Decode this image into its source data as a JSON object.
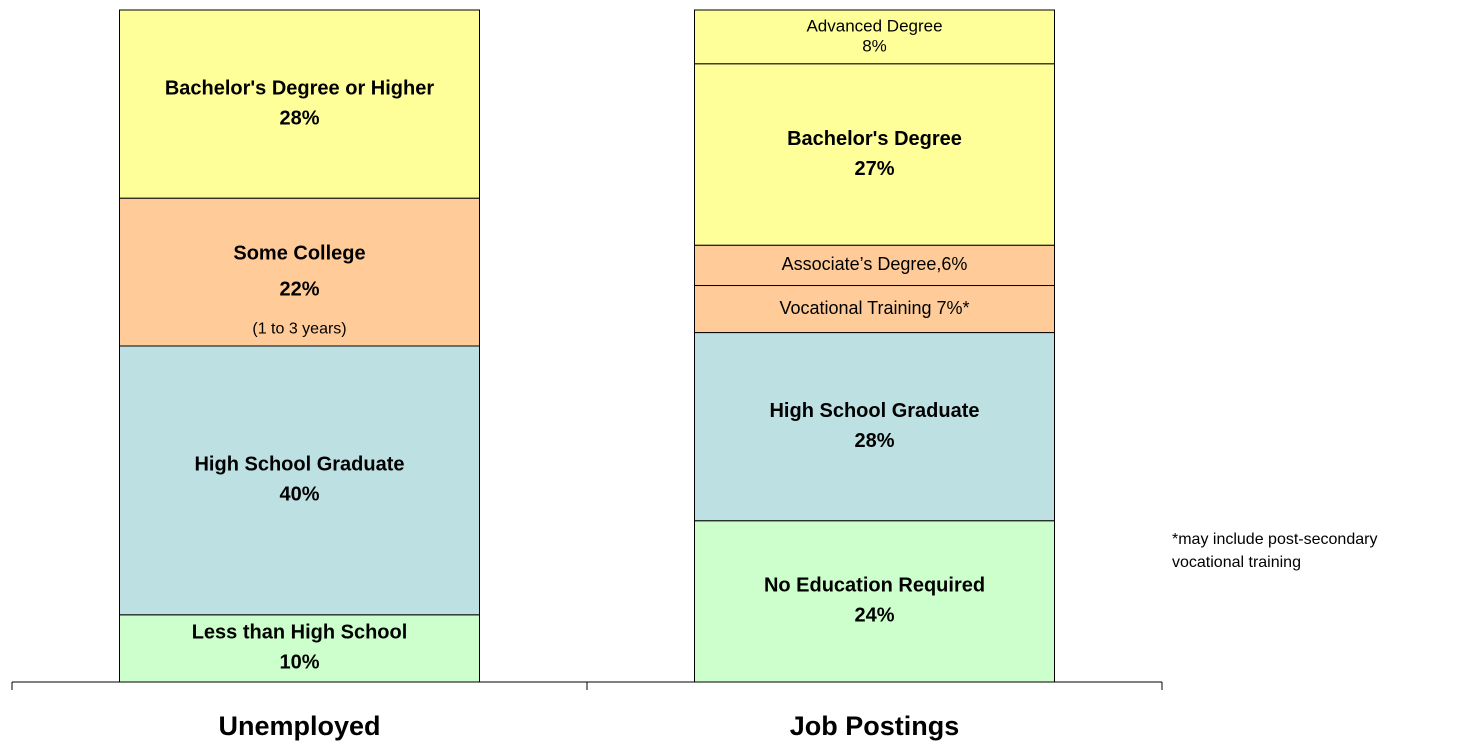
{
  "chart_data": {
    "type": "stacked-bar",
    "ylim": [
      0,
      100
    ],
    "stacks": [
      {
        "category": "Unemployed",
        "segments": [
          {
            "name": "Less than High School",
            "value": 10,
            "value_label": "10%",
            "color": "#ccffcc",
            "bold": true
          },
          {
            "name": "High School Graduate",
            "value": 40,
            "value_label": "40%",
            "color": "#bde0e3",
            "bold": true
          },
          {
            "name": "Some College",
            "value": 22,
            "value_label": "22%",
            "note": "(1 to 3 years)",
            "color": "#ffcc99",
            "bold": true
          },
          {
            "name": "Bachelor's Degree or Higher",
            "value": 28,
            "value_label": "28%",
            "color": "#ffff99",
            "bold": true
          }
        ]
      },
      {
        "category": "Job Postings",
        "segments": [
          {
            "name": "No Education Required",
            "value": 24,
            "value_label": "24%",
            "color": "#ccffcc",
            "bold": true
          },
          {
            "name": "High School Graduate",
            "value": 28,
            "value_label": "28%",
            "color": "#bde0e3",
            "bold": true
          },
          {
            "label": "Vocational Training 7%*",
            "value": 7,
            "color": "#ffcc99",
            "bold": false
          },
          {
            "label": "Associate’s Degree,6%",
            "value": 6,
            "color": "#ffcc99",
            "bold": false
          },
          {
            "name": "Bachelor's Degree",
            "value": 27,
            "value_label": "27%",
            "color": "#ffff99",
            "bold": true
          },
          {
            "name": "Advanced Degree",
            "value": 8,
            "value_label": "8%",
            "color": "#ffff99",
            "bold": false
          }
        ]
      }
    ],
    "footnote": [
      "*may include post-secondary",
      "vocational training"
    ]
  }
}
